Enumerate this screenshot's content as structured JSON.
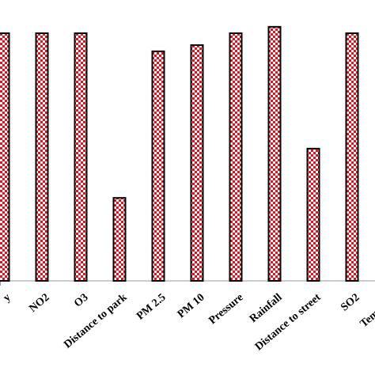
{
  "chart_data": {
    "type": "bar",
    "categories": [
      "y",
      "NO2",
      "O3",
      "Distance to park",
      "PM 2.5",
      "PM 10",
      "Pressure",
      "Rainfall",
      "Distance to street",
      "SO2",
      "Temperat"
    ],
    "values": [
      100,
      100,
      100,
      33.5,
      92.7,
      95.2,
      100,
      102.6,
      53.4,
      100,
      null
    ],
    "color": "#e8101a",
    "ylim": [
      0,
      110
    ]
  }
}
